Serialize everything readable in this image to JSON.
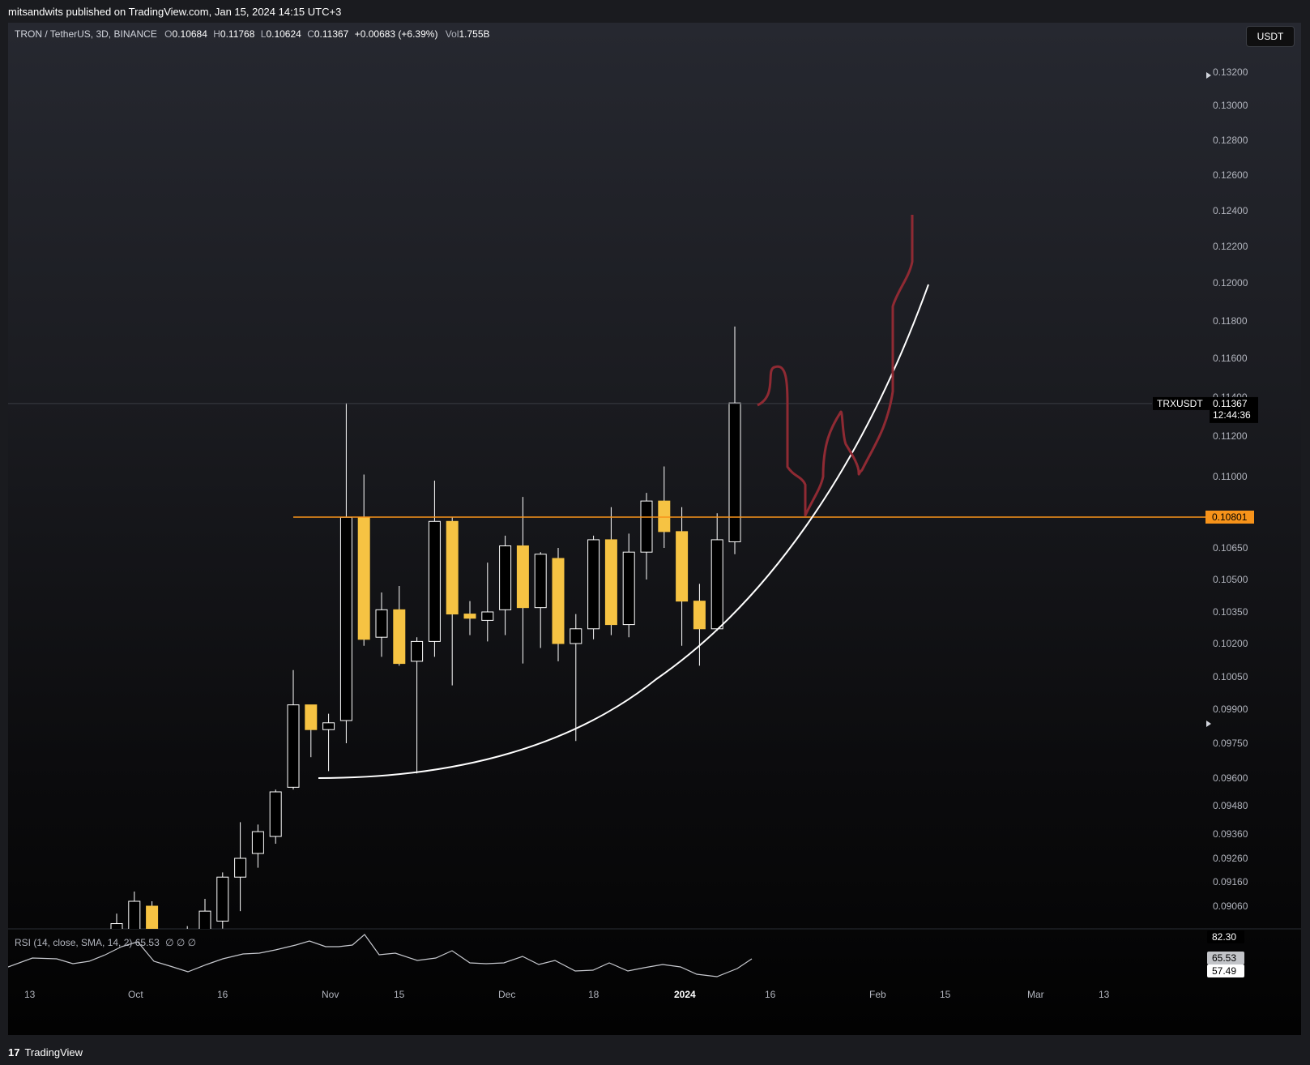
{
  "header": {
    "published": "mitsandwits published on TradingView.com, Jan 15, 2024 14:15 UTC+3"
  },
  "legend": {
    "symbol": "TRON / TetherUS, 3D, BINANCE",
    "o_label": "O",
    "o": "0.10684",
    "h_label": "H",
    "h": "0.11768",
    "l_label": "L",
    "l": "0.10624",
    "c_label": "C",
    "c": "0.11367",
    "change": "+0.00683 (+6.39%)",
    "vol_label": "Vol",
    "vol": "1.755B"
  },
  "currency_button": "USDT",
  "rsi_legend": {
    "text": "RSI (14, close, SMA, 14, 2)",
    "value": "65.53",
    "extra": "∅ ∅ ∅"
  },
  "footer": {
    "brand": "TradingView",
    "logo_glyph": "17"
  },
  "colors": {
    "bull_body": "#000000",
    "bull_border": "#ffffff",
    "bear_body": "#f6c343",
    "level": "#f7931a",
    "projection": "#8f2a33",
    "curve": "#ffffff"
  },
  "chart_data": {
    "type": "candlestick",
    "price_labels": [
      "0.13200",
      "0.13000",
      "0.12800",
      "0.12600",
      "0.12400",
      "0.12200",
      "0.12000",
      "0.11800",
      "0.11600",
      "0.11400",
      "0.11200",
      "0.11000",
      "0.10650",
      "0.10500",
      "0.10350",
      "0.10200",
      "0.10050",
      "0.09900",
      "0.09750",
      "0.09600",
      "0.09480",
      "0.09360",
      "0.09260",
      "0.09160",
      "0.09060"
    ],
    "current_price": {
      "symbol": "TRXUSDT",
      "price": "0.11367",
      "countdown": "12:44:36"
    },
    "level": {
      "price": 0.10801,
      "label": "0.10801"
    },
    "rsi_labels": {
      "upper": "82.30",
      "value": "65.53",
      "signal": "57.49"
    },
    "date_labels": [
      "13",
      "Oct",
      "16",
      "Nov",
      "15",
      "Dec",
      "18",
      "2024",
      "16",
      "Feb",
      "15",
      "Mar",
      "13"
    ],
    "candles": [
      {
        "o": 0.089,
        "h": 0.0903,
        "l": 0.088,
        "c": 0.0899
      },
      {
        "o": 0.0895,
        "h": 0.0912,
        "l": 0.0885,
        "c": 0.0908
      },
      {
        "o": 0.0906,
        "h": 0.0908,
        "l": 0.0889,
        "c": 0.0894
      },
      {
        "o": 0.0889,
        "h": 0.0896,
        "l": 0.0884,
        "c": 0.0892
      },
      {
        "o": 0.0893,
        "h": 0.0898,
        "l": 0.0887,
        "c": 0.0895
      },
      {
        "o": 0.0893,
        "h": 0.0909,
        "l": 0.0888,
        "c": 0.0904
      },
      {
        "o": 0.09,
        "h": 0.092,
        "l": 0.0897,
        "c": 0.0918
      },
      {
        "o": 0.0918,
        "h": 0.0941,
        "l": 0.0904,
        "c": 0.0926
      },
      {
        "o": 0.0928,
        "h": 0.094,
        "l": 0.0922,
        "c": 0.0937
      },
      {
        "o": 0.0935,
        "h": 0.0955,
        "l": 0.0932,
        "c": 0.0954
      },
      {
        "o": 0.0956,
        "h": 0.1008,
        "l": 0.0955,
        "c": 0.0992
      },
      {
        "o": 0.0992,
        "h": 0.0992,
        "l": 0.0969,
        "c": 0.0981
      },
      {
        "o": 0.0981,
        "h": 0.0988,
        "l": 0.0963,
        "c": 0.0984
      },
      {
        "o": 0.0985,
        "h": 0.1137,
        "l": 0.0975,
        "c": 0.108
      },
      {
        "o": 0.108,
        "h": 0.1101,
        "l": 0.1019,
        "c": 0.1022
      },
      {
        "o": 0.1023,
        "h": 0.1044,
        "l": 0.1014,
        "c": 0.1036
      },
      {
        "o": 0.1036,
        "h": 0.1047,
        "l": 0.101,
        "c": 0.1011
      },
      {
        "o": 0.1012,
        "h": 0.1023,
        "l": 0.0962,
        "c": 0.1021
      },
      {
        "o": 0.1021,
        "h": 0.1098,
        "l": 0.1014,
        "c": 0.1078
      },
      {
        "o": 0.1078,
        "h": 0.108,
        "l": 0.1001,
        "c": 0.1034
      },
      {
        "o": 0.1034,
        "h": 0.104,
        "l": 0.1024,
        "c": 0.1032
      },
      {
        "o": 0.1031,
        "h": 0.1058,
        "l": 0.1021,
        "c": 0.1035
      },
      {
        "o": 0.1036,
        "h": 0.1071,
        "l": 0.1024,
        "c": 0.1066
      },
      {
        "o": 0.1066,
        "h": 0.109,
        "l": 0.1011,
        "c": 0.1037
      },
      {
        "o": 0.1037,
        "h": 0.1063,
        "l": 0.1018,
        "c": 0.1062
      },
      {
        "o": 0.106,
        "h": 0.1065,
        "l": 0.1012,
        "c": 0.102
      },
      {
        "o": 0.102,
        "h": 0.1034,
        "l": 0.0976,
        "c": 0.1027
      },
      {
        "o": 0.1027,
        "h": 0.1071,
        "l": 0.1022,
        "c": 0.1069
      },
      {
        "o": 0.1069,
        "h": 0.1085,
        "l": 0.1024,
        "c": 0.1029
      },
      {
        "o": 0.1029,
        "h": 0.1072,
        "l": 0.1023,
        "c": 0.1063
      },
      {
        "o": 0.1063,
        "h": 0.1092,
        "l": 0.105,
        "c": 0.1088
      },
      {
        "o": 0.1088,
        "h": 0.1105,
        "l": 0.1065,
        "c": 0.1073
      },
      {
        "o": 0.1073,
        "h": 0.1085,
        "l": 0.1019,
        "c": 0.104
      },
      {
        "o": 0.104,
        "h": 0.1048,
        "l": 0.101,
        "c": 0.1027
      },
      {
        "o": 0.1027,
        "h": 0.1082,
        "l": 0.1026,
        "c": 0.1069
      },
      {
        "o": 0.1068,
        "h": 0.1177,
        "l": 0.1062,
        "c": 0.1137
      }
    ]
  }
}
